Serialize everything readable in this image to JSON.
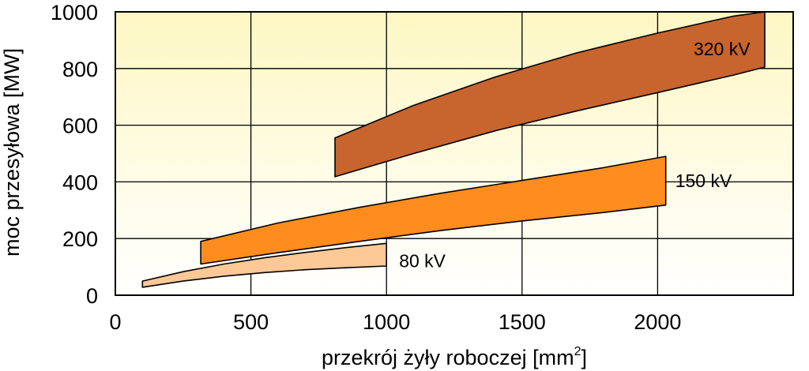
{
  "chart_data": {
    "type": "area",
    "xlabel": "przekrój żyły roboczej [mm",
    "xlabel_sup": "2",
    "xlabel_suffix": "]",
    "ylabel": "moc przesyłowa [MW]",
    "xlim": [
      0,
      2500
    ],
    "ylim": [
      0,
      1000
    ],
    "x_ticks": [
      0,
      500,
      1000,
      1500,
      2000
    ],
    "y_ticks": [
      0,
      200,
      400,
      600,
      800,
      1000
    ],
    "grid": true,
    "background_gradient": [
      "#fdf7c3",
      "#ffffff"
    ],
    "series": [
      {
        "name": "80 kV",
        "color": "#fcc896",
        "x": [
          100,
          250,
          400,
          550,
          700,
          850,
          1000
        ],
        "upper": [
          50,
          83,
          110,
          132,
          151,
          168,
          183
        ],
        "lower": [
          28,
          50,
          67,
          80,
          90,
          97,
          103
        ]
      },
      {
        "name": "150 kV",
        "color": "#ff8c1e",
        "x": [
          315,
          600,
          900,
          1200,
          1500,
          1800,
          2030
        ],
        "upper": [
          190,
          255,
          310,
          360,
          405,
          450,
          490
        ],
        "lower": [
          110,
          150,
          190,
          228,
          262,
          292,
          318
        ]
      },
      {
        "name": "320 kV",
        "color": "#c8642d",
        "x": [
          810,
          1100,
          1400,
          1700,
          2000,
          2280,
          2395
        ],
        "upper": [
          555,
          670,
          770,
          855,
          925,
          985,
          1000
        ],
        "lower": [
          418,
          500,
          580,
          650,
          715,
          777,
          805
        ]
      }
    ]
  }
}
